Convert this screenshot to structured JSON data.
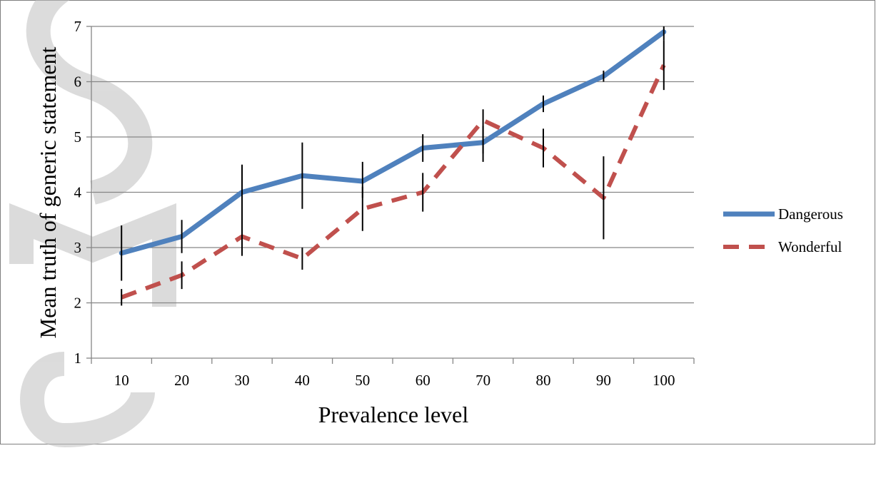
{
  "chart_data": {
    "type": "line",
    "x": [
      10,
      20,
      30,
      40,
      50,
      60,
      70,
      80,
      90,
      100
    ],
    "xlabel": "Prevalence level",
    "ylabel": "Mean truth of generic statement",
    "ylim": [
      1,
      7
    ],
    "yticks": [
      "1",
      "2",
      "3",
      "4",
      "5",
      "6",
      "7"
    ],
    "xticks": [
      "10",
      "20",
      "30",
      "40",
      "50",
      "60",
      "70",
      "80",
      "90",
      "100"
    ],
    "grid": "horizontal",
    "legend": "right",
    "series": [
      {
        "name": "Dangerous",
        "color": "#4f81bd",
        "style": "solid",
        "values": [
          2.9,
          3.2,
          4.0,
          4.3,
          4.2,
          4.8,
          4.9,
          5.6,
          6.1,
          6.9
        ],
        "error_low": [
          2.4,
          2.9,
          3.5,
          3.7,
          3.9,
          4.55,
          4.7,
          5.45,
          6.0,
          6.75
        ],
        "error_high": [
          3.4,
          3.5,
          4.5,
          4.9,
          4.55,
          5.05,
          5.2,
          5.75,
          6.2,
          7.0
        ]
      },
      {
        "name": "Wonderful",
        "color": "#c0504d",
        "style": "dashed",
        "values": [
          2.1,
          2.5,
          3.2,
          2.8,
          3.7,
          4.0,
          5.3,
          4.8,
          3.9,
          6.3
        ],
        "error_low": [
          1.95,
          2.25,
          2.85,
          2.6,
          3.3,
          3.65,
          4.55,
          4.45,
          3.15,
          5.85
        ],
        "error_high": [
          2.25,
          2.75,
          3.55,
          3.0,
          4.1,
          4.35,
          5.5,
          5.15,
          4.65,
          6.75
        ]
      }
    ]
  }
}
